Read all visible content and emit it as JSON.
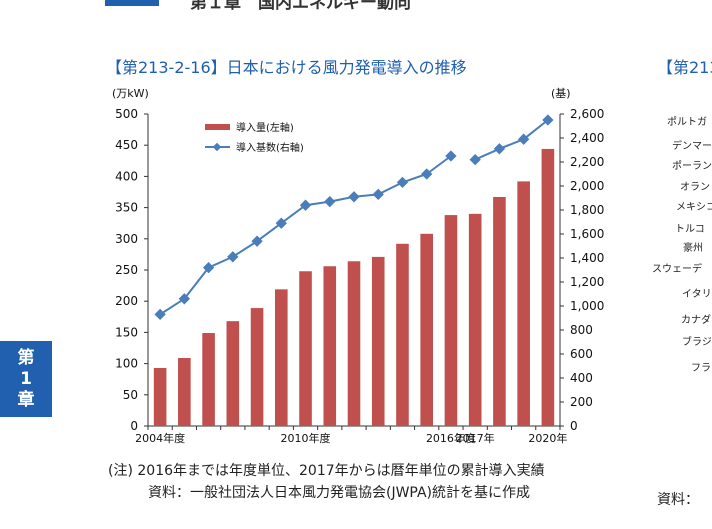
{
  "header": {
    "chapter_title": "第１章　国内エネルギー動向"
  },
  "side_tab": {
    "line1": "第",
    "line2": "1",
    "line3": "章"
  },
  "figure": {
    "title": "【第213-2-16】日本における風力発電導入の推移",
    "note": "(注) 2016年までは年度単位、2017年からは暦年単位の累計導入実績",
    "source": "資料：一般社団法人日本風力発電協会(JWPA)統計を基に作成"
  },
  "next_figure": {
    "title_fragment": "【第213",
    "source_fragment": "資料：",
    "labels": [
      "ポルトガ",
      "デンマー",
      "ポーラン",
      "オラン",
      "メキシコ",
      "トルコ",
      "豪州",
      "スウェーデ",
      "イタリ",
      "カナダ",
      "ブラジ",
      "フラ"
    ]
  },
  "chart_data": {
    "type": "bar+line",
    "x_tick_labels": [
      "2004年度",
      "2010年度",
      "2016年度",
      "2017年",
      "2020年"
    ],
    "categories": [
      "2004年度",
      "2005年度",
      "2006年度",
      "2007年度",
      "2008年度",
      "2009年度",
      "2010年度",
      "2011年度",
      "2012年度",
      "2013年度",
      "2014年度",
      "2015年度",
      "2016年度",
      "2017年",
      "2018年",
      "2019年",
      "2020年"
    ],
    "left_axis": {
      "unit": "(万kW)",
      "min": 0,
      "max": 500,
      "ticks": [
        0,
        50,
        100,
        150,
        200,
        250,
        300,
        350,
        400,
        450,
        500
      ]
    },
    "right_axis": {
      "unit": "(基)",
      "min": 0,
      "max": 2600,
      "ticks": [
        0,
        200,
        400,
        600,
        800,
        1000,
        1200,
        1400,
        1600,
        1800,
        2000,
        2200,
        2400,
        2600
      ]
    },
    "series": [
      {
        "name": "導入量(左軸)",
        "type": "bar",
        "axis": "left",
        "color": "#c0504d",
        "values": [
          93,
          109,
          149,
          168,
          189,
          219,
          248,
          256,
          264,
          271,
          292,
          308,
          338,
          340,
          367,
          392,
          444
        ]
      },
      {
        "name": "導入基数(右軸)",
        "type": "line",
        "axis": "right",
        "color": "#4a7ebb",
        "values": [
          930,
          1060,
          1320,
          1410,
          1540,
          1690,
          1840,
          1870,
          1910,
          1930,
          2030,
          2100,
          2250,
          2220,
          2310,
          2390,
          2550
        ]
      }
    ],
    "legend_position": "top-left",
    "grid": false
  }
}
